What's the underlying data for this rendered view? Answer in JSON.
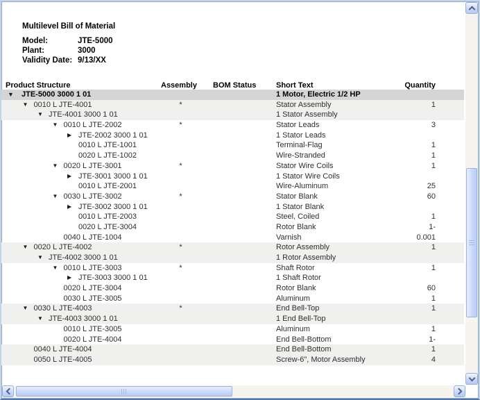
{
  "header": {
    "title": "Multilevel Bill of Material",
    "meta": {
      "model_label": "Model:",
      "model_value": "JTE-5000",
      "plant_label": "Plant:",
      "plant_value": "3000",
      "validity_label": "Validity Date:",
      "validity_value": "9/13/XX"
    }
  },
  "columns": {
    "product_structure": "Product Structure",
    "assembly": "Assembly",
    "bom_status": "BOM Status",
    "short_text": "Short Text",
    "quantity": "Quantity"
  },
  "colors": {
    "root_row_bg": "#d5d5d5",
    "group_row_bg": "#f0f0ee",
    "scrollbar_accent": "#b8ccf5"
  },
  "rows": [
    {
      "level": 0,
      "arrow": "▼",
      "structure": "JTE-5000 3000 1 01",
      "assembly": "",
      "status": "",
      "text": "1 Motor, Electric 1/2 HP",
      "qty": "",
      "shade": "root"
    },
    {
      "level": 1,
      "arrow": "▼",
      "structure": "0010 L JTE-4001",
      "assembly": "*",
      "status": "",
      "text": "Stator Assembly",
      "qty": "1",
      "shade": "group"
    },
    {
      "level": 2,
      "arrow": "▼",
      "structure": "JTE-4001 3000 1 01",
      "assembly": "",
      "status": "",
      "text": "1 Stator Assembly",
      "qty": "",
      "shade": "group"
    },
    {
      "level": 3,
      "arrow": "▼",
      "structure": "0010 L JTE-2002",
      "assembly": "*",
      "status": "",
      "text": "Stator Leads",
      "qty": "3",
      "shade": "none"
    },
    {
      "level": 4,
      "arrow": "▶",
      "structure": "JTE-2002 3000 1 01",
      "assembly": "",
      "status": "",
      "text": "1 Stator Leads",
      "qty": "",
      "shade": "none"
    },
    {
      "level": 4,
      "arrow": "",
      "structure": "0010 L JTE-1001",
      "assembly": "",
      "status": "",
      "text": "Terminal-Flag",
      "qty": "1",
      "shade": "none"
    },
    {
      "level": 4,
      "arrow": "",
      "structure": "0020 L JTE-1002",
      "assembly": "",
      "status": "",
      "text": "Wire-Stranded",
      "qty": "1",
      "shade": "none"
    },
    {
      "level": 3,
      "arrow": "▼",
      "structure": "0020 L JTE-3001",
      "assembly": "*",
      "status": "",
      "text": "Stator Wire Coils",
      "qty": "1",
      "shade": "none"
    },
    {
      "level": 4,
      "arrow": "▶",
      "structure": "JTE-3001 3000 1 01",
      "assembly": "",
      "status": "",
      "text": "1 Stator Wire Coils",
      "qty": "",
      "shade": "none"
    },
    {
      "level": 4,
      "arrow": "",
      "structure": "0010 L JTE-2001",
      "assembly": "",
      "status": "",
      "text": "Wire-Aluminum",
      "qty": "25",
      "shade": "none"
    },
    {
      "level": 3,
      "arrow": "▼",
      "structure": "0030 L JTE-3002",
      "assembly": "*",
      "status": "",
      "text": "Stator Blank",
      "qty": "60",
      "shade": "none"
    },
    {
      "level": 4,
      "arrow": "▶",
      "structure": "JTE-3002 3000 1 01",
      "assembly": "",
      "status": "",
      "text": "1 Stator Blank",
      "qty": "",
      "shade": "none"
    },
    {
      "level": 4,
      "arrow": "",
      "structure": "0010 L JTE-2003",
      "assembly": "",
      "status": "",
      "text": "Steel, Coiled",
      "qty": "1",
      "shade": "none"
    },
    {
      "level": 4,
      "arrow": "",
      "structure": "0020 L JTE-3004",
      "assembly": "",
      "status": "",
      "text": "Rotor Blank",
      "qty": "1-",
      "shade": "none"
    },
    {
      "level": 3,
      "arrow": "",
      "structure": "0040 L JTE-1004",
      "assembly": "",
      "status": "",
      "text": "Varnish",
      "qty": "0.001",
      "shade": "none"
    },
    {
      "level": 1,
      "arrow": "▼",
      "structure": "0020 L JTE-4002",
      "assembly": "*",
      "status": "",
      "text": "Rotor Assembly",
      "qty": "1",
      "shade": "group"
    },
    {
      "level": 2,
      "arrow": "▼",
      "structure": "JTE-4002 3000 1 01",
      "assembly": "",
      "status": "",
      "text": "1 Rotor Assembly",
      "qty": "",
      "shade": "group"
    },
    {
      "level": 3,
      "arrow": "▼",
      "structure": "0010 L JTE-3003",
      "assembly": "*",
      "status": "",
      "text": "Shaft Rotor",
      "qty": "1",
      "shade": "none"
    },
    {
      "level": 4,
      "arrow": "▶",
      "structure": "JTE-3003 3000 1 01",
      "assembly": "",
      "status": "",
      "text": "1 Shaft Rotor",
      "qty": "",
      "shade": "none"
    },
    {
      "level": 3,
      "arrow": "",
      "structure": "0020 L JTE-3004",
      "assembly": "",
      "status": "",
      "text": "Rotor Blank",
      "qty": "60",
      "shade": "none"
    },
    {
      "level": 3,
      "arrow": "",
      "structure": "0030 L JTE-3005",
      "assembly": "",
      "status": "",
      "text": "Aluminum",
      "qty": "1",
      "shade": "none"
    },
    {
      "level": 1,
      "arrow": "▼",
      "structure": "0030 L JTE-4003",
      "assembly": "*",
      "status": "",
      "text": "End Bell-Top",
      "qty": "1",
      "shade": "group"
    },
    {
      "level": 2,
      "arrow": "▼",
      "structure": "JTE-4003 3000 1 01",
      "assembly": "",
      "status": "",
      "text": "1 End Bell-Top",
      "qty": "",
      "shade": "group"
    },
    {
      "level": 3,
      "arrow": "",
      "structure": "0010 L JTE-3005",
      "assembly": "",
      "status": "",
      "text": "Aluminum",
      "qty": "1",
      "shade": "none"
    },
    {
      "level": 3,
      "arrow": "",
      "structure": "0020 L JTE-4004",
      "assembly": "",
      "status": "",
      "text": "End Bell-Bottom",
      "qty": "1-",
      "shade": "none"
    },
    {
      "level": 1,
      "arrow": "",
      "structure": "0040 L JTE-4004",
      "assembly": "",
      "status": "",
      "text": "End Bell-Bottom",
      "qty": "1",
      "shade": "group"
    },
    {
      "level": 1,
      "arrow": "",
      "structure": "0050 L JTE-4005",
      "assembly": "",
      "status": "",
      "text": "Screw-6\", Motor Assembly",
      "qty": "4",
      "shade": "group"
    }
  ]
}
